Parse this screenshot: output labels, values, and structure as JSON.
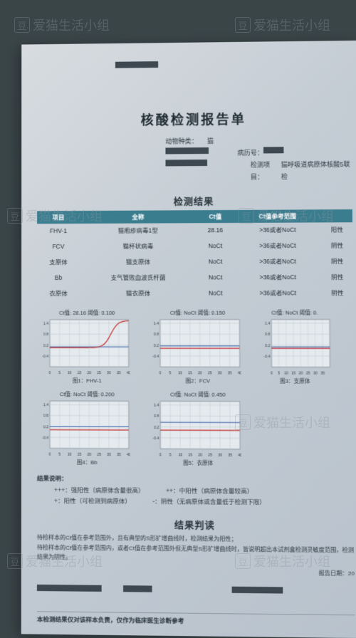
{
  "watermark_text": "爱猫生活小组",
  "title": "核酸检测报告单",
  "meta": {
    "species_label": "动物种类：",
    "species_value": "猫",
    "record_label": "病历号：",
    "project_label": "检测项目：",
    "project_value": "猫呼吸道病原体核酸5联检"
  },
  "results_heading": "检测结果",
  "table": {
    "headers": [
      "项目",
      "全称",
      "Ct值",
      "Ct值参考范围",
      ""
    ],
    "rows": [
      [
        "FHV-1",
        "猫疱疹病毒1型",
        "28.16",
        ">36或者NoCt",
        "阳性"
      ],
      [
        "FCV",
        "猫杯状病毒",
        "NoCt",
        ">36或者NoCt",
        "阴性"
      ],
      [
        "支原体",
        "猫支原体",
        "NoCt",
        ">36或者NoCt",
        "阴性"
      ],
      [
        "Bb",
        "支气管败血波氏杆菌",
        "NoCt",
        ">36或者NoCt",
        "阴性"
      ],
      [
        "衣原体",
        "猫衣原体",
        "NoCt",
        ">36或者NoCt",
        "阴性"
      ]
    ]
  },
  "charts": [
    {
      "title": "Ct值: 28.16  阈值: 0.100",
      "caption": "图1：FHV-1",
      "ylim": [
        -1,
        1.6
      ],
      "xlim": [
        0,
        40
      ],
      "yticks": [
        -0.4,
        0.2,
        0.8,
        1.4
      ],
      "xticks": [
        0,
        5,
        10,
        15,
        20,
        25,
        30,
        35,
        40
      ],
      "curve": "scurve",
      "threshold": 0.1,
      "colors": {
        "curve": "#c42b2b",
        "threshold": "#2d5aa8",
        "grid": "#b8c4cc",
        "bg": "#e4eaee"
      }
    },
    {
      "title": "Ct值: NoCt  阈值: 0.150",
      "caption": "图2：FCV",
      "ylim": [
        -1,
        1.6
      ],
      "xlim": [
        0,
        40
      ],
      "yticks": [
        -0.4,
        0.2,
        0.8,
        1.4
      ],
      "xticks": [
        0,
        5,
        10,
        15,
        20,
        25,
        30,
        35,
        40
      ],
      "curve": "flat",
      "threshold": 0.15,
      "colors": {
        "curve": "#c42b2b",
        "threshold": "#2d5aa8",
        "grid": "#b8c4cc",
        "bg": "#e4eaee"
      }
    },
    {
      "title": "Ct值: NoCt  阈值: 0.",
      "caption": "图3：支原体",
      "ylim": [
        -1,
        1.6
      ],
      "xlim": [
        0,
        40
      ],
      "yticks": [
        -0.4,
        0.2,
        0.8,
        1.4
      ],
      "xticks": [
        0,
        5,
        10,
        15,
        20,
        25,
        30,
        35
      ],
      "curve": "flat",
      "threshold": 0.1,
      "cut": true,
      "colors": {
        "curve": "#c42b2b",
        "threshold": "#2d5aa8",
        "grid": "#b8c4cc",
        "bg": "#e4eaee"
      }
    },
    {
      "title": "Ct值: NoCt  阈值: 0.200",
      "caption": "图4：Bb",
      "ylim": [
        -1,
        1.6
      ],
      "xlim": [
        0,
        40
      ],
      "yticks": [
        -0.4,
        0.2,
        0.8,
        1.4
      ],
      "xticks": [
        0,
        5,
        10,
        15,
        20,
        25,
        30,
        35,
        40
      ],
      "curve": "flat",
      "threshold": 0.2,
      "colors": {
        "curve": "#c42b2b",
        "threshold": "#2d5aa8",
        "grid": "#b8c4cc",
        "bg": "#e4eaee"
      }
    },
    {
      "title": "Ct值: NoCt  阈值: 0.450",
      "caption": "图5：衣原体",
      "ylim": [
        -1,
        1.6
      ],
      "xlim": [
        0,
        40
      ],
      "yticks": [
        -0.4,
        0.2,
        0.8,
        1.4
      ],
      "xticks": [
        0,
        5,
        10,
        15,
        20,
        25,
        30,
        35,
        40
      ],
      "curve": "flat",
      "threshold": 0.45,
      "colors": {
        "curve": "#c42b2b",
        "threshold": "#2d5aa8",
        "grid": "#b8c4cc",
        "bg": "#e4eaee"
      }
    }
  ],
  "legend": {
    "heading": "结果说明：",
    "items": [
      [
        "+++：强阳性（病原体含量很高）",
        "++：中阳性（病原体含量较高）"
      ],
      [
        "+：阳性（可检测到病原体）",
        "-：阴性（无病原体或含量低于检测下限）"
      ]
    ]
  },
  "interpret": {
    "heading": "结果判读",
    "lines": [
      "待检样本的Ct值在参考范围外，且有典型的S形扩增曲线时，检测结果为阳性；",
      "待检样本的Ct值在参考范围内，或者Ct值在参考范围外但无典型S形扩增曲线时，皆说明超出本试剂盒检测灵敏度范围，检测结果为阴性。"
    ]
  },
  "report_date_label": "报告日期：20",
  "footer": "本检测结果仅对该样本负责，仅作为临床医生诊断参考"
}
